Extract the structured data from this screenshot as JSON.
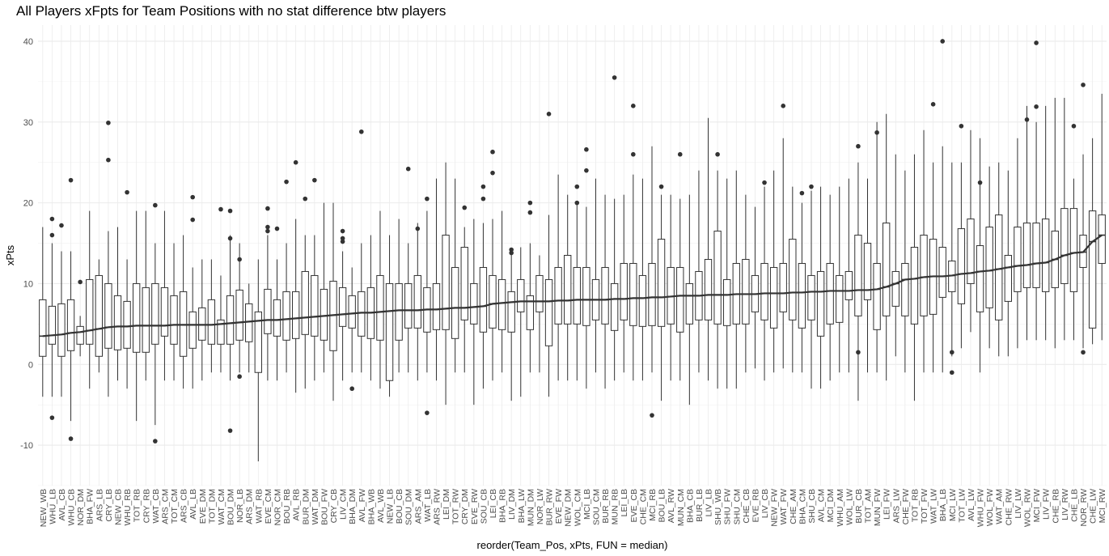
{
  "chart_data": {
    "type": "box",
    "title": "All Players xFpts for Team Positions with no stat difference btw players",
    "xlabel": "reorder(Team_Pos, xPts, FUN = median)",
    "ylabel": "xPts",
    "ylim": [
      -15,
      42
    ],
    "yticks": [
      -10,
      0,
      10,
      20,
      30,
      40
    ],
    "grid": true,
    "trend_line": "median",
    "categories": [
      "NEW_WB",
      "WHU_LB",
      "AVL_CB",
      "WHU_CB",
      "NOR_DM",
      "BHA_FW",
      "ARS_LB",
      "CRY_LB",
      "NEW_CB",
      "WHU_RB",
      "TOT_RB",
      "CRY_RB",
      "WAT_CB",
      "ARS_CM",
      "TOT_CM",
      "ARS_CB",
      "AVL_LB",
      "EVE_DM",
      "TOT_DM",
      "WAT_CM",
      "BOU_DM",
      "NOR_LB",
      "ARS_DM",
      "WAT_RB",
      "EVE_CM",
      "NOR_CM",
      "BOU_RB",
      "AVL_RB",
      "BUR_DM",
      "WAT_DM",
      "BOU_FW",
      "CRY_CB",
      "LIV_CM",
      "BHA_DM",
      "AVL_FW",
      "BHA_WB",
      "AVL_WB",
      "NEW_LB",
      "BOU_CB",
      "SOU_DM",
      "ARS_AM",
      "WAT_LB",
      "ARS_RW",
      "LEI_DM",
      "TOT_RW",
      "CRY_DM",
      "EVE_RW",
      "SOU_CB",
      "LEI_CB",
      "BHA_RB",
      "LIV_DM",
      "BHA_LW",
      "MUN_DM",
      "NOR_LW",
      "BUR_RW",
      "EVE_FW",
      "NEW_DM",
      "WOL_CM",
      "MCI_LB",
      "SOU_CM",
      "BUR_RB",
      "MUN_RB",
      "LEI_LB",
      "EVE_CB",
      "CHE_CM",
      "MCI_RB",
      "BOU_LB",
      "AVL_RW",
      "MUN_CM",
      "BHA_CB",
      "BUR_LB",
      "LIV_LB",
      "SHU_WB",
      "SHU_FW",
      "SHU_CM",
      "CHE_CB",
      "EVE_RB",
      "LIV_CB",
      "NEW_FW",
      "WAT_FW",
      "CHE_AM",
      "BHA_CM",
      "SHU_CB",
      "AVL_CM",
      "MCI_DM",
      "WHU_AM",
      "WOL_LW",
      "BUR_CB",
      "TOT_AM",
      "MUN_FW",
      "LEI_FW",
      "ARS_LW",
      "CHE_FW",
      "TOT_RB",
      "TOT_FW",
      "WAT_LW",
      "BHA_LB",
      "MCI_LW",
      "TOT_LW",
      "AVL_LW",
      "WHU_FW",
      "WOL_FW",
      "WAT_AM",
      "CHE_RW",
      "LIV_LW",
      "WOL_RW",
      "MCI_FW",
      "LIV_FW",
      "CHE_RB",
      "LIV_RW",
      "CHE_LB",
      "NOR_RW",
      "CHE_LW",
      "MCI_RW"
    ],
    "medians": [
      3.5,
      3.6,
      3.7,
      3.9,
      4.0,
      4.2,
      4.4,
      4.6,
      4.7,
      4.7,
      4.8,
      4.8,
      4.8,
      4.8,
      4.9,
      4.9,
      4.9,
      4.9,
      4.9,
      5.0,
      5.1,
      5.2,
      5.3,
      5.4,
      5.5,
      5.5,
      5.6,
      5.7,
      5.8,
      5.9,
      6.0,
      6.1,
      6.2,
      6.3,
      6.4,
      6.4,
      6.5,
      6.6,
      6.7,
      6.7,
      6.7,
      6.8,
      6.8,
      6.9,
      7.0,
      7.0,
      7.1,
      7.2,
      7.5,
      7.6,
      7.7,
      7.8,
      7.8,
      7.8,
      7.8,
      7.9,
      7.9,
      8.0,
      8.0,
      8.0,
      8.0,
      8.1,
      8.1,
      8.2,
      8.2,
      8.3,
      8.3,
      8.4,
      8.5,
      8.5,
      8.5,
      8.6,
      8.6,
      8.6,
      8.7,
      8.7,
      8.7,
      8.8,
      8.8,
      8.8,
      8.9,
      8.9,
      9.0,
      9.0,
      9.1,
      9.1,
      9.1,
      9.2,
      9.2,
      9.3,
      9.6,
      10.0,
      10.5,
      10.6,
      10.8,
      10.9,
      10.9,
      11.0,
      11.2,
      11.3,
      11.5,
      11.6,
      11.8,
      12.0,
      12.2,
      12.3,
      12.5,
      12.6,
      13.0,
      13.5,
      13.8,
      13.9,
      15.2,
      16.0
    ],
    "q1": [
      1.0,
      2.5,
      1.0,
      1.7,
      2.5,
      2.5,
      1.0,
      2.0,
      1.8,
      2.0,
      1.5,
      1.5,
      2.5,
      3.5,
      2.5,
      1.0,
      2.0,
      3.0,
      2.5,
      2.5,
      2.5,
      3.0,
      2.8,
      -1.0,
      3.8,
      3.5,
      3.0,
      3.2,
      3.7,
      3.5,
      3.0,
      1.7,
      4.7,
      4.5,
      3.5,
      3.2,
      3.0,
      -2.0,
      3.0,
      4.5,
      4.5,
      4.0,
      4.3,
      4.3,
      3.2,
      5.5,
      5.0,
      4.0,
      4.5,
      4.3,
      4.0,
      6.5,
      4.3,
      6.5,
      2.3,
      5.0,
      5.0,
      5.0,
      4.8,
      5.5,
      5.0,
      4.2,
      5.5,
      4.8,
      4.7,
      4.8,
      4.7,
      5.0,
      4.0,
      5.0,
      5.5,
      5.5,
      5.0,
      4.8,
      5.0,
      5.0,
      6.5,
      5.5,
      4.5,
      6.5,
      5.5,
      4.5,
      5.5,
      3.5,
      5.0,
      5.2,
      8.0,
      6.0,
      8.0,
      4.3,
      6.0,
      7.2,
      6.0,
      5.0,
      6.0,
      6.2,
      8.3,
      9.0,
      7.5,
      10.0,
      6.5,
      7.0,
      5.5,
      7.8,
      9.0,
      9.5,
      9.5,
      9.0,
      9.5,
      10.0,
      9.0,
      12.0,
      4.5,
      12.5
    ],
    "q3": [
      8.0,
      7.2,
      7.5,
      8.0,
      4.7,
      10.5,
      11.0,
      10.0,
      8.5,
      7.8,
      10.0,
      9.5,
      10.0,
      9.5,
      8.5,
      9.0,
      6.5,
      7.0,
      8.0,
      5.5,
      8.5,
      9.2,
      7.5,
      6.5,
      9.3,
      8.0,
      9.0,
      9.0,
      11.5,
      11.0,
      9.3,
      10.3,
      9.5,
      8.5,
      9.0,
      9.5,
      11.0,
      10.0,
      10.0,
      10.0,
      11.0,
      9.5,
      10.0,
      16.0,
      12.0,
      14.5,
      10.0,
      12.0,
      11.0,
      10.5,
      9.0,
      10.5,
      8.5,
      11.0,
      10.5,
      12.0,
      13.5,
      12.0,
      12.0,
      10.5,
      12.0,
      10.0,
      12.5,
      12.5,
      11.0,
      12.5,
      15.5,
      12.0,
      12.0,
      10.0,
      11.5,
      13.0,
      16.5,
      10.5,
      12.5,
      13.0,
      11.0,
      12.5,
      12.0,
      12.5,
      15.5,
      12.5,
      11.0,
      11.5,
      12.5,
      11.0,
      11.5,
      16.0,
      15.0,
      12.5,
      17.5,
      11.5,
      12.5,
      14.5,
      16.0,
      15.5,
      14.5,
      12.8,
      16.8,
      18.0,
      14.7,
      17.0,
      18.5,
      13.5,
      17.0,
      17.5,
      17.5,
      18.0,
      16.5,
      19.3,
      19.3,
      16.0,
      19.0,
      18.5,
      21.0
    ],
    "lower_whiskers": [
      -4.0,
      -4.0,
      -4.0,
      -7.0,
      1.0,
      -3.0,
      -1.0,
      -4.0,
      -2.0,
      -3.0,
      -7.0,
      -2.0,
      -7.5,
      -2.0,
      -2.0,
      -3.0,
      -3.0,
      -2.0,
      -1.0,
      -1.0,
      -2.0,
      -1.0,
      -1.0,
      -12.0,
      -2.0,
      -2.0,
      -1.0,
      -3.5,
      -3.0,
      -2.0,
      -1.0,
      -4.5,
      -2.0,
      -1.0,
      -1.0,
      -2.0,
      -3.0,
      -4.0,
      -1.0,
      -1.0,
      -2.0,
      -1.0,
      -2.0,
      -5.0,
      -1.0,
      -1.0,
      -5.0,
      -3.0,
      -2.0,
      -1.0,
      -4.5,
      -4.0,
      -1.0,
      -1.0,
      -4.0,
      -2.0,
      -2.0,
      -2.0,
      -3.0,
      -1.0,
      -3.0,
      -2.0,
      -1.0,
      -2.0,
      -2.0,
      -1.0,
      -4.5,
      -2.0,
      -2.0,
      -5.0,
      -1.0,
      -2.0,
      -3.0,
      -3.0,
      -3.0,
      -1.0,
      -0.5,
      -2.0,
      -1.0,
      -0.5,
      -1.0,
      -1.0,
      -3.0,
      -3.0,
      -2.0,
      -1.0,
      -1.0,
      -4.5,
      -1.0,
      -1.0,
      -2.0,
      1.0,
      -1.0,
      -4.5,
      -1.0,
      -1.0,
      -1.0,
      1.0,
      2.0,
      4.0,
      -1.0,
      2.0,
      1.0,
      1.0,
      2.0,
      3.0,
      3.0,
      3.0,
      2.0,
      3.0,
      3.0,
      2.0,
      2.5,
      3.0,
      3.0
    ],
    "upper_whiskers": [
      17.0,
      15.0,
      14.0,
      14.0,
      6.0,
      19.0,
      13.0,
      16.5,
      17.0,
      13.0,
      19.0,
      19.0,
      15.0,
      19.0,
      15.0,
      16.0,
      12.0,
      13.0,
      13.0,
      11.0,
      16.0,
      15.0,
      10.0,
      13.0,
      16.0,
      13.0,
      15.0,
      18.0,
      16.0,
      16.0,
      20.0,
      20.0,
      14.0,
      12.0,
      15.0,
      16.0,
      19.0,
      16.0,
      18.0,
      15.0,
      17.5,
      19.0,
      23.0,
      25.0,
      23.0,
      17.0,
      18.0,
      17.5,
      18.0,
      19.0,
      14.0,
      14.5,
      15.0,
      13.5,
      18.5,
      23.5,
      21.0,
      20.0,
      19.5,
      23.0,
      21.0,
      20.5,
      21.0,
      23.5,
      23.0,
      27.0,
      21.0,
      21.0,
      20.5,
      21.0,
      24.0,
      30.5,
      24.0,
      23.0,
      24.0,
      21.0,
      19.5,
      22.0,
      24.0,
      28.0,
      22.0,
      20.0,
      21.5,
      22.0,
      21.0,
      22.0,
      23.0,
      25.0,
      23.0,
      30.0,
      31.0,
      26.0,
      24.0,
      26.0,
      29.0,
      25.0,
      27.0,
      25.0,
      25.0,
      29.0,
      28.0,
      24.5,
      25.0,
      24.0,
      28.0,
      32.0,
      30.0,
      32.0,
      33.0,
      33.0,
      23.0,
      26.0,
      28.0,
      33.5
    ],
    "outliers": [
      [],
      [
        -6.6,
        16.0,
        18.0
      ],
      [
        17.2
      ],
      [
        -9.2,
        22.8
      ],
      [
        10.2
      ],
      [],
      [],
      [
        25.3,
        29.9
      ],
      [],
      [
        21.3
      ],
      [],
      [],
      [
        -9.5,
        19.7
      ],
      [],
      [],
      [],
      [
        17.9,
        20.7
      ],
      [],
      [],
      [
        19.2
      ],
      [
        -8.2,
        15.6,
        19.0
      ],
      [
        -1.5,
        13.0
      ],
      [],
      [],
      [
        16.5,
        17.0,
        19.3
      ],
      [
        16.8
      ],
      [
        22.6
      ],
      [
        25.0
      ],
      [
        20.5
      ],
      [
        22.8
      ],
      [],
      [],
      [
        15.2,
        15.6,
        16.5
      ],
      [
        -3.0
      ],
      [
        28.8
      ],
      [],
      [],
      [],
      [],
      [
        24.2
      ],
      [
        16.8
      ],
      [
        -6.0,
        20.5
      ],
      [],
      [],
      [],
      [
        19.4
      ],
      [],
      [
        20.5,
        22.0
      ],
      [
        23.7,
        26.3
      ],
      [],
      [
        13.8,
        14.2
      ],
      [],
      [
        18.8,
        20.0
      ],
      [],
      [
        31.0
      ],
      [],
      [],
      [
        20.0,
        22.0
      ],
      [
        24.0,
        26.6
      ],
      [],
      [],
      [
        35.5
      ],
      [],
      [
        26.0,
        32.0
      ],
      [],
      [
        -6.3
      ],
      [
        22.0
      ],
      [],
      [
        26.0
      ],
      [],
      [],
      [],
      [
        26.0
      ],
      [],
      [],
      [],
      [],
      [
        22.5
      ],
      [],
      [
        32.0
      ],
      [],
      [
        21.2
      ],
      [
        22.0
      ],
      [],
      [],
      [],
      [],
      [
        1.5,
        27.0
      ],
      [],
      [
        28.7
      ],
      [],
      [],
      [],
      [],
      [],
      [
        32.2
      ],
      [
        40.0
      ],
      [
        -1.0,
        1.5
      ],
      [
        29.5
      ],
      [],
      [
        22.5
      ],
      [],
      [],
      [],
      [],
      [
        30.3
      ],
      [
        31.9,
        39.8
      ],
      [],
      [],
      [],
      [
        29.5
      ],
      [
        1.5,
        34.6
      ],
      [],
      []
    ]
  }
}
